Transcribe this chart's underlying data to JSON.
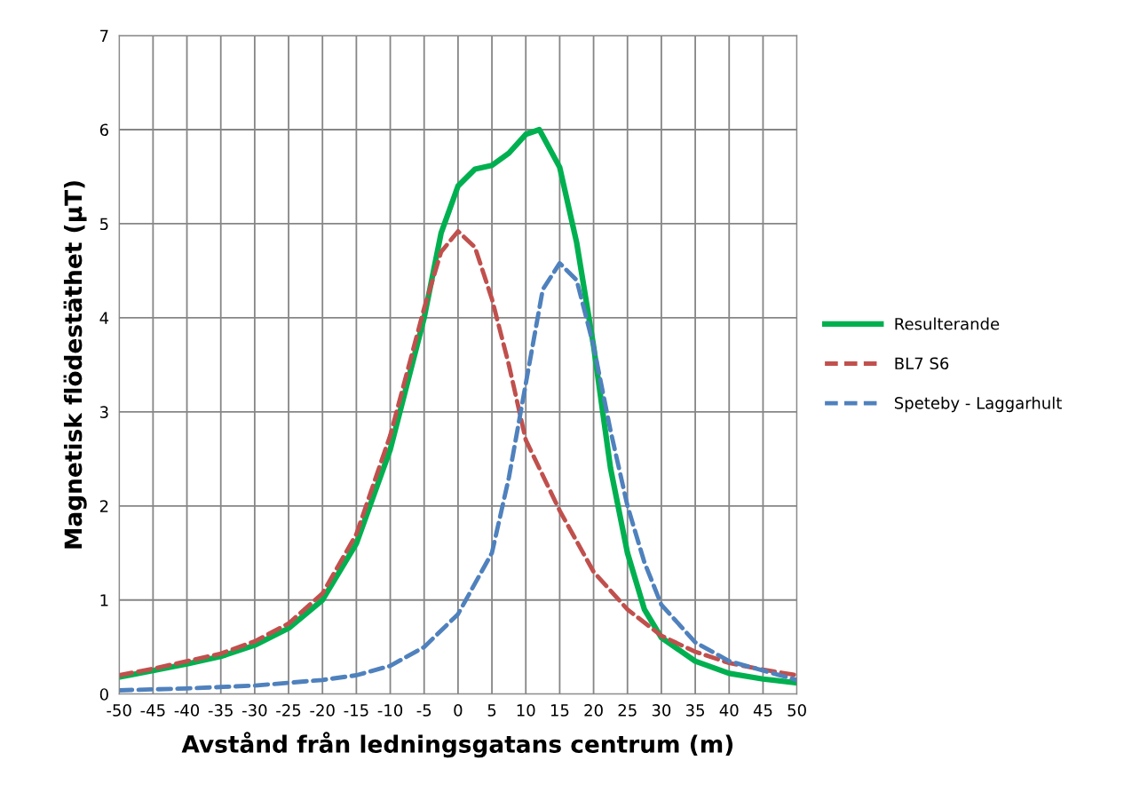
{
  "chart_data": {
    "type": "line",
    "xlabel": "Avstånd från ledningsgatans centrum (m)",
    "ylabel": "Magnetisk flödestäthet (µT)",
    "xlim": [
      -50,
      50
    ],
    "xticks": [
      -50,
      -45,
      -40,
      -35,
      -30,
      -25,
      -20,
      -15,
      -10,
      -5,
      0,
      5,
      10,
      15,
      20,
      25,
      30,
      35,
      40,
      45,
      50
    ],
    "ylim": [
      0,
      7
    ],
    "yticks": [
      0,
      1,
      2,
      3,
      4,
      5,
      6,
      7
    ],
    "grid": true,
    "legend": "right",
    "marker": "none",
    "series": [
      {
        "name": "Resulterande",
        "color": "#00b050",
        "line_style": "solid",
        "x": [
          -50,
          -45,
          -40,
          -35,
          -30,
          -25,
          -20,
          -15,
          -10,
          -5,
          -2.5,
          0,
          2.5,
          5,
          7.5,
          10,
          12,
          15,
          17.5,
          20,
          22.5,
          25,
          27.5,
          30,
          35,
          40,
          45,
          50
        ],
        "values": [
          0.18,
          0.25,
          0.32,
          0.4,
          0.52,
          0.7,
          1.0,
          1.6,
          2.6,
          4.0,
          4.9,
          5.4,
          5.58,
          5.62,
          5.75,
          5.95,
          6.0,
          5.6,
          4.8,
          3.7,
          2.4,
          1.5,
          0.9,
          0.6,
          0.35,
          0.22,
          0.16,
          0.12
        ]
      },
      {
        "name": "BL7 S6",
        "color": "#c0504d",
        "line_style": "dashed",
        "x": [
          -50,
          -45,
          -40,
          -35,
          -30,
          -25,
          -20,
          -15,
          -10,
          -5,
          -2.5,
          0,
          2.5,
          5,
          7.5,
          10,
          15,
          20,
          25,
          30,
          35,
          40,
          45,
          50
        ],
        "values": [
          0.2,
          0.27,
          0.35,
          0.43,
          0.56,
          0.75,
          1.07,
          1.7,
          2.75,
          4.1,
          4.7,
          4.92,
          4.75,
          4.2,
          3.5,
          2.7,
          1.95,
          1.3,
          0.9,
          0.62,
          0.45,
          0.33,
          0.26,
          0.2
        ]
      },
      {
        "name": "Speteby - Laggarhult",
        "color": "#4f81bd",
        "line_style": "dashed",
        "x": [
          -50,
          -40,
          -30,
          -20,
          -15,
          -10,
          -5,
          0,
          5,
          7.5,
          10,
          12.5,
          15,
          17.5,
          20,
          22.5,
          25,
          27.5,
          30,
          35,
          40,
          45,
          50
        ],
        "values": [
          0.04,
          0.06,
          0.09,
          0.15,
          0.2,
          0.3,
          0.5,
          0.85,
          1.5,
          2.3,
          3.3,
          4.3,
          4.58,
          4.4,
          3.7,
          2.8,
          2.0,
          1.4,
          0.95,
          0.55,
          0.35,
          0.25,
          0.15
        ]
      }
    ]
  }
}
